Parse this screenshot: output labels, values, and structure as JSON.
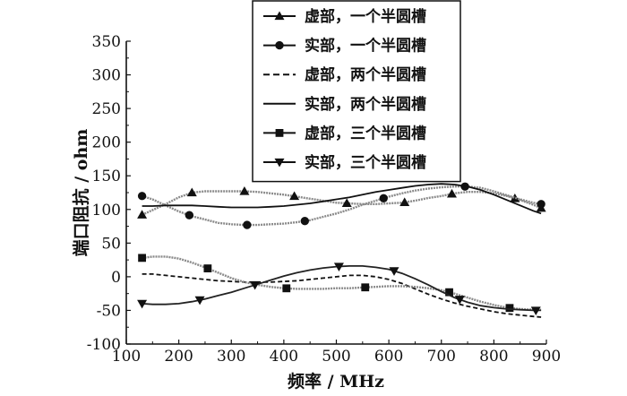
{
  "chart_data": {
    "type": "line",
    "xlabel": "频率 / MHz",
    "ylabel": "端口阻抗 / ohm",
    "xlim": [
      100,
      900
    ],
    "ylim": [
      -100,
      350
    ],
    "xticks": [
      100,
      200,
      300,
      400,
      500,
      600,
      700,
      800,
      900
    ],
    "yticks": [
      -100,
      -50,
      0,
      50,
      100,
      150,
      200,
      250,
      300,
      350
    ],
    "grid": false,
    "legend_position": "top-right",
    "series": [
      {
        "name": "虚部，一个半圆槽",
        "style": "solid",
        "marker": "triangle-up",
        "color": "#8a8a8a",
        "markers_x": [
          130,
          225,
          325,
          420,
          520,
          630,
          720,
          840,
          890
        ],
        "x": [
          130,
          150,
          175,
          200,
          225,
          250,
          275,
          300,
          325,
          350,
          375,
          400,
          425,
          450,
          475,
          500,
          525,
          550,
          575,
          600,
          625,
          650,
          675,
          700,
          725,
          750,
          775,
          800,
          825,
          850,
          875,
          890
        ],
        "y": [
          92,
          99,
          108,
          118,
          125,
          127,
          127,
          127,
          127,
          126,
          124,
          122,
          119,
          116,
          113,
          110,
          109,
          108,
          108,
          109,
          110,
          113,
          117,
          120,
          124,
          126,
          126,
          124,
          120,
          114,
          107,
          102
        ]
      },
      {
        "name": "实部，一个半圆槽",
        "style": "solid",
        "marker": "circle",
        "color": "#8a8a8a",
        "markers_x": [
          130,
          220,
          330,
          440,
          590,
          745,
          890
        ],
        "x": [
          130,
          150,
          175,
          200,
          225,
          250,
          275,
          300,
          325,
          350,
          375,
          400,
          425,
          450,
          475,
          500,
          525,
          550,
          575,
          600,
          625,
          650,
          675,
          700,
          725,
          750,
          775,
          800,
          825,
          850,
          875,
          890
        ],
        "y": [
          120,
          115,
          106,
          97,
          90,
          85,
          80,
          78,
          77,
          77,
          78,
          79,
          81,
          84,
          89,
          94,
          100,
          107,
          113,
          119,
          124,
          128,
          131,
          133,
          134,
          134,
          132,
          127,
          121,
          115,
          110,
          108
        ]
      },
      {
        "name": "虚部，两个半圆槽",
        "style": "dashed",
        "marker": "none",
        "color": "#111111",
        "markers_x": [],
        "x": [
          130,
          150,
          175,
          200,
          225,
          250,
          275,
          300,
          325,
          350,
          375,
          400,
          425,
          450,
          475,
          500,
          525,
          550,
          575,
          600,
          625,
          650,
          675,
          700,
          725,
          750,
          775,
          800,
          825,
          850,
          875,
          890
        ],
        "y": [
          4,
          4,
          2,
          0,
          -2,
          -4,
          -6,
          -7,
          -8,
          -8,
          -8,
          -7,
          -6,
          -4,
          -2,
          0,
          2,
          2,
          0,
          -4,
          -10,
          -18,
          -26,
          -33,
          -39,
          -44,
          -48,
          -52,
          -55,
          -57,
          -59,
          -60
        ]
      },
      {
        "name": "实部，两个半圆槽",
        "style": "solid",
        "marker": "none",
        "color": "#111111",
        "markers_x": [],
        "x": [
          130,
          150,
          175,
          200,
          225,
          250,
          275,
          300,
          325,
          350,
          375,
          400,
          425,
          450,
          475,
          500,
          525,
          550,
          575,
          600,
          625,
          650,
          675,
          700,
          725,
          750,
          775,
          800,
          825,
          850,
          875,
          890
        ],
        "y": [
          105,
          105,
          106,
          106,
          106,
          105,
          104,
          103,
          103,
          103,
          104,
          105,
          107,
          109,
          112,
          115,
          118,
          122,
          126,
          129,
          132,
          135,
          137,
          138,
          137,
          134,
          129,
          122,
          114,
          106,
          98,
          94
        ]
      },
      {
        "name": "虚部，三个半圆槽",
        "style": "solid",
        "marker": "square",
        "color": "#8a8a8a",
        "markers_x": [
          130,
          255,
          405,
          555,
          715,
          830
        ],
        "x": [
          130,
          150,
          175,
          200,
          225,
          250,
          275,
          300,
          325,
          350,
          375,
          400,
          425,
          450,
          475,
          500,
          525,
          550,
          575,
          600,
          625,
          650,
          675,
          700,
          725,
          750,
          775,
          800,
          825,
          850,
          875,
          890
        ],
        "y": [
          28,
          30,
          30,
          27,
          21,
          14,
          6,
          -2,
          -8,
          -12,
          -15,
          -17,
          -18,
          -18,
          -18,
          -17,
          -17,
          -16,
          -15,
          -14,
          -14,
          -15,
          -17,
          -20,
          -25,
          -31,
          -37,
          -42,
          -46,
          -48,
          -49,
          -49
        ]
      },
      {
        "name": "实部，三个半圆槽",
        "style": "solid",
        "marker": "triangle-down",
        "color": "#222222",
        "markers_x": [
          130,
          240,
          345,
          505,
          610,
          735,
          880
        ],
        "x": [
          130,
          150,
          175,
          200,
          225,
          250,
          275,
          300,
          325,
          350,
          375,
          400,
          425,
          450,
          475,
          500,
          525,
          550,
          575,
          600,
          625,
          650,
          675,
          700,
          725,
          750,
          775,
          800,
          825,
          850,
          875,
          890
        ],
        "y": [
          -40,
          -41,
          -41,
          -40,
          -37,
          -33,
          -28,
          -23,
          -17,
          -11,
          -5,
          1,
          6,
          10,
          13,
          15,
          16,
          16,
          14,
          11,
          5,
          -3,
          -12,
          -22,
          -31,
          -38,
          -43,
          -46,
          -48,
          -49,
          -50,
          -50
        ]
      }
    ]
  }
}
